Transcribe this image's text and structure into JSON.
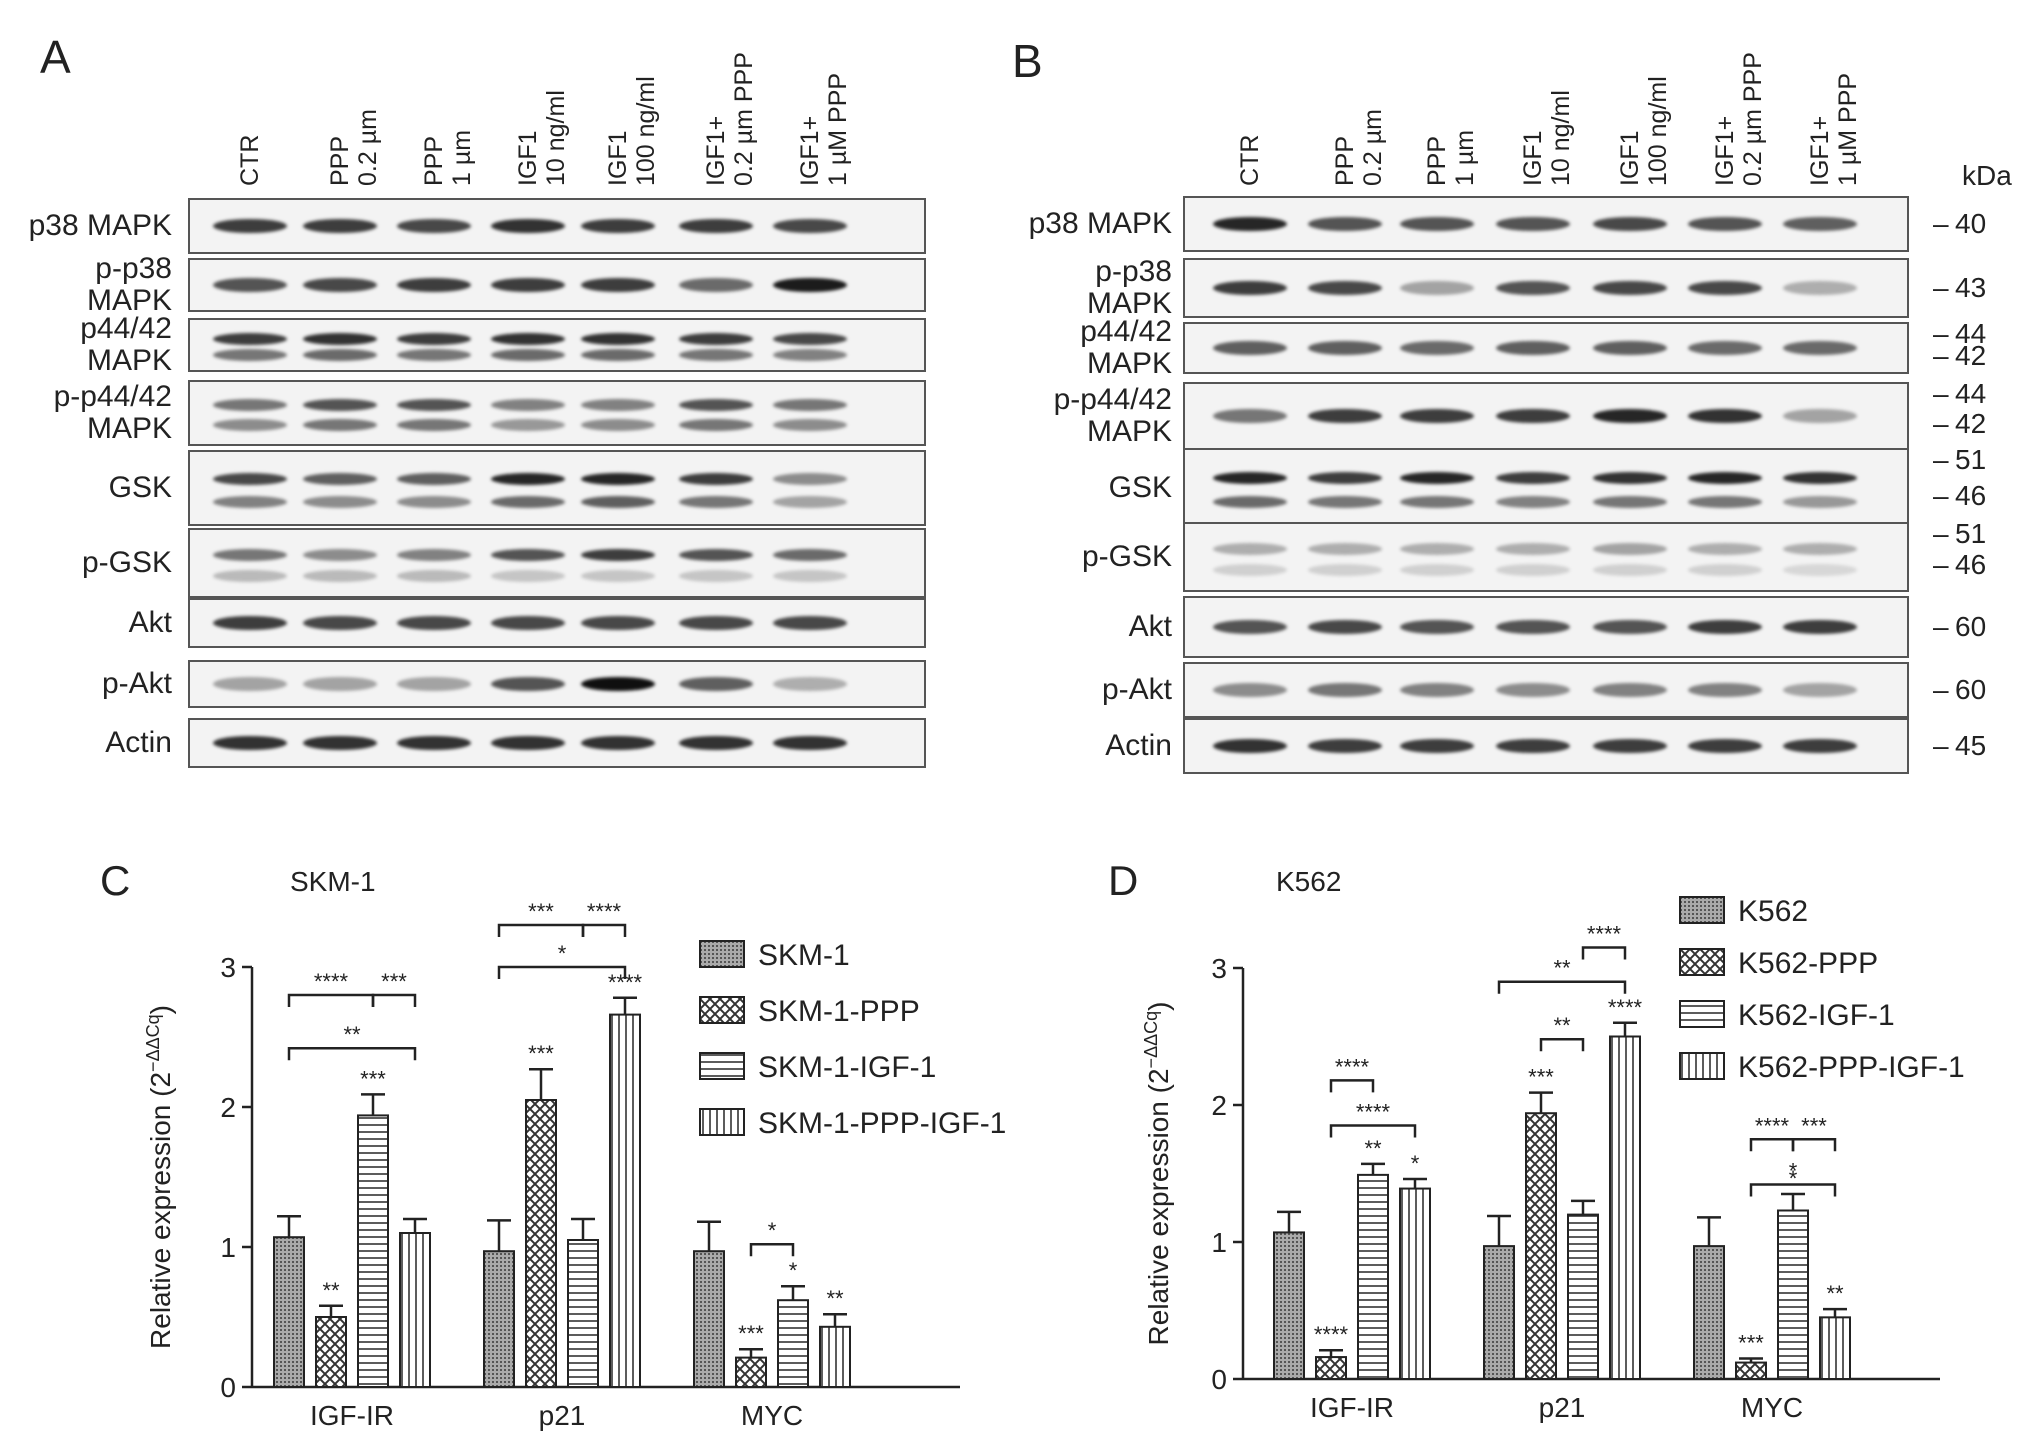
{
  "panelA": {
    "letter": "A",
    "lanes": [
      [
        "CTR"
      ],
      [
        "PPP",
        "0.2 µm"
      ],
      [
        "PPP",
        "1 µm"
      ],
      [
        "IGF1",
        "10 ng/ml"
      ],
      [
        "IGF1",
        "100 ng/ml"
      ],
      [
        "IGF1+",
        "0.2 µm PPP"
      ],
      [
        "IGF1+",
        "1 µM PPP"
      ]
    ],
    "rows": [
      {
        "label": [
          "p38 MAPK"
        ],
        "intensity": [
          0.8,
          0.8,
          0.75,
          0.85,
          0.8,
          0.8,
          0.75
        ],
        "second": null
      },
      {
        "label": [
          "p-p38",
          "MAPK"
        ],
        "intensity": [
          0.7,
          0.75,
          0.8,
          0.8,
          0.8,
          0.6,
          0.95
        ],
        "second": null
      },
      {
        "label": [
          "p44/42",
          "MAPK"
        ],
        "intensity": [
          0.8,
          0.85,
          0.8,
          0.85,
          0.85,
          0.8,
          0.75
        ],
        "second": [
          0.55,
          0.6,
          0.55,
          0.6,
          0.6,
          0.55,
          0.5
        ]
      },
      {
        "label": [
          "p-p44/42",
          "MAPK"
        ],
        "intensity": [
          0.55,
          0.7,
          0.7,
          0.5,
          0.5,
          0.7,
          0.55
        ],
        "second": [
          0.45,
          0.55,
          0.55,
          0.4,
          0.45,
          0.55,
          0.45
        ]
      },
      {
        "label": [
          "GSK"
        ],
        "intensity": [
          0.75,
          0.65,
          0.65,
          0.9,
          0.9,
          0.8,
          0.45
        ],
        "second": [
          0.5,
          0.45,
          0.45,
          0.6,
          0.65,
          0.55,
          0.35
        ]
      },
      {
        "label": [
          "p-GSK"
        ],
        "intensity": [
          0.55,
          0.45,
          0.5,
          0.7,
          0.8,
          0.7,
          0.6
        ],
        "second": [
          0.25,
          0.25,
          0.25,
          0.2,
          0.2,
          0.2,
          0.2
        ]
      },
      {
        "label": [
          "Akt"
        ],
        "intensity": [
          0.8,
          0.75,
          0.75,
          0.75,
          0.75,
          0.75,
          0.75
        ],
        "second": null
      },
      {
        "label": [
          "p-Akt"
        ],
        "intensity": [
          0.35,
          0.35,
          0.35,
          0.7,
          1.0,
          0.65,
          0.3
        ],
        "second": null
      },
      {
        "label": [
          "Actin"
        ],
        "intensity": [
          0.85,
          0.85,
          0.85,
          0.85,
          0.85,
          0.85,
          0.85
        ],
        "second": null
      }
    ]
  },
  "panelB": {
    "letter": "B",
    "kda_unit": "kDa",
    "lanes": [
      [
        "CTR"
      ],
      [
        "PPP",
        "0.2 µm"
      ],
      [
        "PPP",
        "1 µm"
      ],
      [
        "IGF1",
        "10 ng/ml"
      ],
      [
        "IGF1",
        "100 ng/ml"
      ],
      [
        "IGF1+",
        "0.2 µm PPP"
      ],
      [
        "IGF1+",
        "1 µM PPP"
      ]
    ],
    "rows": [
      {
        "label": [
          "p38 MAPK"
        ],
        "kda": [
          "40"
        ],
        "intensity": [
          0.9,
          0.7,
          0.7,
          0.7,
          0.75,
          0.7,
          0.65
        ],
        "second": null
      },
      {
        "label": [
          "p-p38",
          "MAPK"
        ],
        "kda": [
          "43"
        ],
        "intensity": [
          0.8,
          0.75,
          0.35,
          0.7,
          0.75,
          0.75,
          0.3
        ],
        "second": null
      },
      {
        "label": [
          "p44/42",
          "MAPK"
        ],
        "kda": [
          "44",
          "42"
        ],
        "intensity": [
          0.65,
          0.65,
          0.6,
          0.65,
          0.65,
          0.6,
          0.6
        ],
        "second": null
      },
      {
        "label": [
          "p-p44/42",
          "MAPK"
        ],
        "kda": [
          "44",
          "42"
        ],
        "intensity": [
          0.55,
          0.8,
          0.8,
          0.8,
          0.9,
          0.85,
          0.35
        ],
        "second": null
      },
      {
        "label": [
          "GSK"
        ],
        "kda": [
          "51",
          "46"
        ],
        "intensity": [
          0.9,
          0.8,
          0.9,
          0.8,
          0.85,
          0.9,
          0.85
        ],
        "second": [
          0.6,
          0.55,
          0.55,
          0.5,
          0.55,
          0.55,
          0.4
        ]
      },
      {
        "label": [
          "p-GSK"
        ],
        "kda": [
          "51",
          "46"
        ],
        "intensity": [
          0.3,
          0.3,
          0.3,
          0.3,
          0.35,
          0.3,
          0.3
        ],
        "second": [
          0.15,
          0.15,
          0.15,
          0.15,
          0.15,
          0.15,
          0.12
        ]
      },
      {
        "label": [
          "Akt"
        ],
        "kda": [
          "60"
        ],
        "intensity": [
          0.7,
          0.75,
          0.7,
          0.7,
          0.7,
          0.8,
          0.8
        ],
        "second": null
      },
      {
        "label": [
          "p-Akt"
        ],
        "kda": [
          "60"
        ],
        "intensity": [
          0.45,
          0.55,
          0.5,
          0.45,
          0.5,
          0.5,
          0.35
        ],
        "second": null
      },
      {
        "label": [
          "Actin"
        ],
        "kda": [
          "45"
        ],
        "intensity": [
          0.85,
          0.8,
          0.8,
          0.8,
          0.8,
          0.8,
          0.8
        ],
        "second": null
      }
    ]
  },
  "panelC": {
    "letter": "C",
    "title": "SKM-1",
    "legend": [
      "SKM-1",
      "SKM-1-PPP",
      "SKM-1-IGF-1",
      "SKM-1-PPP-IGF-1"
    ]
  },
  "panelD": {
    "letter": "D",
    "title": "K562",
    "legend": [
      "K562",
      "K562-PPP",
      "K562-IGF-1",
      "K562-PPP-IGF-1"
    ]
  },
  "chart_data": [
    {
      "type": "bar",
      "title": "SKM-1",
      "categories": [
        "IGF-IR",
        "p21",
        "MYC"
      ],
      "ylabel": "Relative expression (2^-ΔΔCq)",
      "ylabel_main": "Relative expression (2",
      "ylabel_sup": "−ΔΔCq",
      "ylabel_tail": ")",
      "ylim": [
        0,
        3
      ],
      "yticks": [
        "0",
        "1",
        "2",
        "3"
      ],
      "series": [
        {
          "name": "SKM-1",
          "values": [
            1.07,
            0.97,
            0.97
          ],
          "errors": [
            0.15,
            0.22,
            0.21
          ],
          "stars": [
            "",
            "",
            ""
          ]
        },
        {
          "name": "SKM-1-PPP",
          "values": [
            0.5,
            2.05,
            0.21
          ],
          "errors": [
            0.08,
            0.22,
            0.06
          ],
          "stars": [
            "**",
            "***",
            "***"
          ]
        },
        {
          "name": "SKM-1-IGF-1",
          "values": [
            1.94,
            1.05,
            0.62
          ],
          "errors": [
            0.15,
            0.15,
            0.1
          ],
          "stars": [
            "***",
            "",
            "*"
          ]
        },
        {
          "name": "SKM-1-PPP-IGF-1",
          "values": [
            1.1,
            2.66,
            0.43
          ],
          "errors": [
            0.1,
            0.12,
            0.09
          ],
          "stars": [
            "",
            "****",
            "**"
          ]
        }
      ],
      "brackets": [
        {
          "cat": 0,
          "from": 0,
          "to": 2,
          "y": 2.8,
          "label": "****"
        },
        {
          "cat": 0,
          "from": 2,
          "to": 3,
          "y": 2.8,
          "label": "***"
        },
        {
          "cat": 0,
          "from": 0,
          "to": 3,
          "y": 2.42,
          "label": "**"
        },
        {
          "cat": 1,
          "from": 0,
          "to": 2,
          "y": 3.3,
          "label": "***"
        },
        {
          "cat": 1,
          "from": 2,
          "to": 3,
          "y": 3.3,
          "label": "****"
        },
        {
          "cat": 1,
          "from": 0,
          "to": 3,
          "y": 3.0,
          "label": "*"
        },
        {
          "cat": 2,
          "from": 1,
          "to": 2,
          "y": 1.02,
          "label": "*"
        }
      ]
    },
    {
      "type": "bar",
      "title": "K562",
      "categories": [
        "IGF-IR",
        "p21",
        "MYC"
      ],
      "ylabel": "Relative expression (2^-ΔΔCq)",
      "ylabel_main": "Relative expression (2",
      "ylabel_sup": "−ΔΔCq",
      "ylabel_tail": ")",
      "ylim": [
        0,
        3
      ],
      "yticks": [
        "0",
        "1",
        "2",
        "3"
      ],
      "series": [
        {
          "name": "K562",
          "values": [
            1.07,
            0.97,
            0.97
          ],
          "errors": [
            0.15,
            0.22,
            0.21
          ],
          "stars": [
            "",
            "",
            ""
          ]
        },
        {
          "name": "K562-PPP",
          "values": [
            0.16,
            1.94,
            0.12
          ],
          "errors": [
            0.05,
            0.15,
            0.03
          ],
          "stars": [
            "****",
            "***",
            "***"
          ]
        },
        {
          "name": "K562-IGF-1",
          "values": [
            1.49,
            1.2,
            1.23
          ],
          "errors": [
            0.08,
            0.1,
            0.12
          ],
          "stars": [
            "**",
            "",
            "*"
          ]
        },
        {
          "name": "K562-PPP-IGF-1",
          "values": [
            1.39,
            2.5,
            0.45
          ],
          "errors": [
            0.07,
            0.1,
            0.06
          ],
          "stars": [
            "*",
            "****",
            "**"
          ]
        }
      ],
      "brackets": [
        {
          "cat": 0,
          "from": 1,
          "to": 2,
          "y": 2.18,
          "label": "****"
        },
        {
          "cat": 0,
          "from": 1,
          "to": 3,
          "y": 1.85,
          "label": "****"
        },
        {
          "cat": 1,
          "from": 1,
          "to": 2,
          "y": 2.48,
          "label": "**"
        },
        {
          "cat": 1,
          "from": 2,
          "to": 3,
          "y": 3.15,
          "label": "****"
        },
        {
          "cat": 1,
          "from": 0,
          "to": 3,
          "y": 2.9,
          "label": "**"
        },
        {
          "cat": 2,
          "from": 1,
          "to": 2,
          "y": 1.75,
          "label": "****"
        },
        {
          "cat": 2,
          "from": 2,
          "to": 3,
          "y": 1.75,
          "label": "***"
        },
        {
          "cat": 2,
          "from": 1,
          "to": 3,
          "y": 1.42,
          "label": "*"
        }
      ]
    }
  ]
}
